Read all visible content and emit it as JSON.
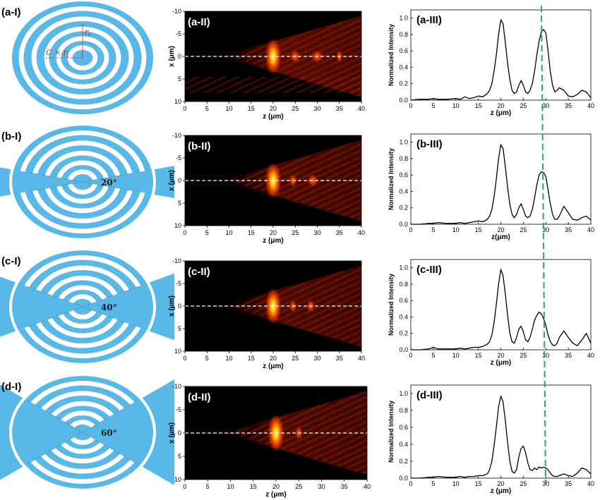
{
  "rows": [
    {
      "disc": {
        "label": "(a-I)",
        "angle": "",
        "annot_r": "r",
        "annot_r_sub": "t",
        "annot_c": "C × r",
        "annot_c_sub": "t"
      },
      "map": {
        "label": "(a-II)",
        "xlabel": "z (μm)",
        "ylabel": "x (μm)"
      },
      "line": {
        "label": "(a-III)",
        "xlabel": "z (μm)",
        "ylabel": "Normalized Intensity"
      }
    },
    {
      "disc": {
        "label": "(b-I)",
        "angle": "20°"
      },
      "map": {
        "label": "(b-II)",
        "xlabel": "z (μm)",
        "ylabel": "x (μm)"
      },
      "line": {
        "label": "(b-III)",
        "xlabel": "z(μm)",
        "ylabel": "Normalized Intensity"
      }
    },
    {
      "disc": {
        "label": "(c-I)",
        "angle": "40°"
      },
      "map": {
        "label": "(c-II)",
        "xlabel": "z (μm)",
        "ylabel": "x (μm)"
      },
      "line": {
        "label": "(c-III)",
        "xlabel": "z (μm)",
        "ylabel": "Normalized Intensity"
      }
    },
    {
      "disc": {
        "label": "(d-I)",
        "angle": "60°"
      },
      "map": {
        "label": "(d-II)",
        "xlabel": "z (μm)",
        "ylabel": "x (μm)"
      },
      "line": {
        "label": "(d-III)",
        "xlabel": "z (μm)",
        "ylabel": "Normalized Intensity"
      }
    }
  ],
  "colors": {
    "disc": "#58b9e8",
    "ring_gap": "#ffffff",
    "curve": "#000000",
    "reference_line": "#2ca85a",
    "centerline": "#ffffff"
  },
  "chart_data": [
    {
      "type": "heatmap",
      "title": "(a-II)",
      "xlabel": "z (μm)",
      "ylabel": "x (μm)",
      "xlim": [
        0,
        40
      ],
      "ylim": [
        10,
        -10
      ],
      "xticks": [
        0,
        5,
        10,
        15,
        20,
        25,
        30,
        35,
        40
      ],
      "yticks": [
        -10,
        -5,
        0,
        5,
        10
      ],
      "colormap": "hot",
      "features": [
        {
          "z": 20,
          "x": 0,
          "intensity": 1.0
        },
        {
          "z": 25,
          "x": 0,
          "intensity": 0.5
        },
        {
          "z": 30,
          "x": 0,
          "intensity": 0.55
        },
        {
          "z": 35,
          "x": 0,
          "intensity": 0.3
        }
      ]
    },
    {
      "type": "heatmap",
      "title": "(b-II)",
      "xlabel": "z (μm)",
      "ylabel": "x (μm)",
      "xlim": [
        0,
        40
      ],
      "ylim": [
        10,
        -10
      ],
      "xticks": [
        0,
        5,
        10,
        15,
        20,
        25,
        30,
        35,
        40
      ],
      "yticks": [
        -10,
        -5,
        0,
        5,
        10
      ],
      "colormap": "hot",
      "features": [
        {
          "z": 20,
          "x": 0,
          "intensity": 1.0
        },
        {
          "z": 24.5,
          "x": 0,
          "intensity": 0.4
        },
        {
          "z": 29,
          "x": 0,
          "intensity": 0.5
        }
      ]
    },
    {
      "type": "heatmap",
      "title": "(c-II)",
      "xlabel": "z (μm)",
      "ylabel": "x (μm)",
      "xlim": [
        0,
        40
      ],
      "ylim": [
        10,
        -10
      ],
      "xticks": [
        0,
        5,
        10,
        15,
        20,
        25,
        30,
        35,
        40
      ],
      "yticks": [
        -10,
        -5,
        0,
        5,
        10
      ],
      "colormap": "hot",
      "features": [
        {
          "z": 20,
          "x": 0,
          "intensity": 1.0
        },
        {
          "z": 24.5,
          "x": 0,
          "intensity": 0.35
        },
        {
          "z": 28.5,
          "x": 0,
          "intensity": 0.4
        }
      ]
    },
    {
      "type": "heatmap",
      "title": "(d-II)",
      "xlabel": "z (μm)",
      "ylabel": "x (μm)",
      "xlim": [
        0,
        40
      ],
      "ylim": [
        10,
        -10
      ],
      "xticks": [
        0,
        5,
        10,
        15,
        20,
        25,
        30,
        35,
        40
      ],
      "yticks": [
        -10,
        -5,
        0,
        5,
        10
      ],
      "colormap": "hot",
      "features": [
        {
          "z": 20,
          "x": 0,
          "intensity": 1.0
        },
        {
          "z": 25,
          "x": 0,
          "intensity": 0.35
        }
      ]
    },
    {
      "type": "line",
      "title": "(a-III)",
      "xlabel": "z (μm)",
      "ylabel": "Normalized Intensity",
      "xlim": [
        0,
        40
      ],
      "ylim": [
        0,
        1.1
      ],
      "xticks": [
        0,
        5,
        10,
        15,
        20,
        25,
        30,
        35,
        40
      ],
      "yticks": [
        0.0,
        0.2,
        0.4,
        0.6,
        0.8,
        1.0
      ],
      "reference_z": 30,
      "x": [
        0,
        2,
        4,
        5,
        6,
        8,
        10,
        11,
        12,
        13,
        14,
        15,
        16,
        17,
        17.5,
        18,
        18.5,
        19,
        19.5,
        20,
        20.5,
        21,
        21.5,
        22,
        22.5,
        23,
        23.5,
        24,
        24.5,
        25,
        25.5,
        26,
        26.5,
        27,
        27.5,
        28,
        28.5,
        29,
        29.5,
        30,
        30.5,
        31,
        31.5,
        32,
        32.5,
        33,
        34,
        35,
        36,
        37,
        38,
        39,
        40
      ],
      "y": [
        0.0,
        0.01,
        0.01,
        0.02,
        0.01,
        0.01,
        0.02,
        0.01,
        0.04,
        0.02,
        0.03,
        0.05,
        0.04,
        0.08,
        0.12,
        0.2,
        0.35,
        0.55,
        0.8,
        0.98,
        0.93,
        0.7,
        0.45,
        0.25,
        0.12,
        0.08,
        0.1,
        0.18,
        0.24,
        0.18,
        0.1,
        0.08,
        0.12,
        0.2,
        0.35,
        0.55,
        0.72,
        0.83,
        0.86,
        0.82,
        0.6,
        0.35,
        0.18,
        0.1,
        0.12,
        0.15,
        0.12,
        0.05,
        0.04,
        0.07,
        0.12,
        0.1,
        0.03
      ]
    },
    {
      "type": "line",
      "title": "(b-III)",
      "xlabel": "z(μm)",
      "ylabel": "Normalized Intensity",
      "xlim": [
        0,
        40
      ],
      "ylim": [
        0,
        1.1
      ],
      "xticks": [
        0,
        5,
        10,
        15,
        20,
        25,
        30,
        35,
        40
      ],
      "yticks": [
        0.0,
        0.2,
        0.4,
        0.6,
        0.8,
        1.0
      ],
      "reference_z": 30,
      "x": [
        0,
        2,
        4,
        5,
        6,
        8,
        10,
        11,
        12,
        13,
        14,
        15,
        16,
        17,
        17.5,
        18,
        18.5,
        19,
        19.5,
        20,
        20.5,
        21,
        21.5,
        22,
        22.5,
        23,
        23.5,
        24,
        24.5,
        25,
        25.5,
        26,
        26.5,
        27,
        27.5,
        28,
        28.5,
        29,
        29.5,
        30,
        30.5,
        31,
        31.5,
        32,
        32.5,
        33,
        34,
        35,
        36,
        37,
        38,
        39,
        40
      ],
      "y": [
        0.0,
        0.0,
        0.01,
        0.01,
        0.02,
        0.01,
        0.01,
        0.02,
        0.01,
        0.02,
        0.03,
        0.04,
        0.03,
        0.06,
        0.1,
        0.18,
        0.33,
        0.55,
        0.8,
        0.97,
        0.92,
        0.7,
        0.45,
        0.24,
        0.12,
        0.08,
        0.12,
        0.2,
        0.25,
        0.18,
        0.1,
        0.08,
        0.1,
        0.18,
        0.32,
        0.48,
        0.6,
        0.64,
        0.63,
        0.58,
        0.42,
        0.25,
        0.12,
        0.06,
        0.06,
        0.1,
        0.22,
        0.14,
        0.06,
        0.05,
        0.08,
        0.1,
        0.05
      ]
    },
    {
      "type": "line",
      "title": "(c-III)",
      "xlabel": "z (μm)",
      "ylabel": "Normalized Intensity",
      "xlim": [
        0,
        40
      ],
      "ylim": [
        0,
        1.1
      ],
      "xticks": [
        0,
        5,
        10,
        15,
        20,
        25,
        30,
        35,
        40
      ],
      "yticks": [
        0.0,
        0.2,
        0.4,
        0.6,
        0.8,
        1.0
      ],
      "reference_z": 30,
      "x": [
        0,
        2,
        4,
        5,
        6,
        8,
        10,
        11,
        12,
        13,
        14,
        15,
        16,
        17,
        17.5,
        18,
        18.5,
        19,
        19.5,
        20,
        20.5,
        21,
        21.5,
        22,
        22.5,
        23,
        23.5,
        24,
        24.5,
        25,
        25.5,
        26,
        26.5,
        27,
        27.5,
        28,
        28.5,
        29,
        29.5,
        30,
        30.5,
        31,
        31.5,
        32,
        32.5,
        33,
        34,
        35,
        36,
        37,
        38,
        39,
        40
      ],
      "y": [
        0.0,
        0.0,
        0.01,
        0.03,
        0.01,
        0.01,
        0.01,
        0.02,
        0.01,
        0.02,
        0.03,
        0.03,
        0.04,
        0.07,
        0.1,
        0.18,
        0.33,
        0.55,
        0.8,
        0.98,
        0.9,
        0.68,
        0.42,
        0.2,
        0.1,
        0.08,
        0.15,
        0.25,
        0.29,
        0.22,
        0.12,
        0.1,
        0.15,
        0.25,
        0.36,
        0.42,
        0.46,
        0.44,
        0.38,
        0.3,
        0.18,
        0.1,
        0.06,
        0.05,
        0.08,
        0.15,
        0.23,
        0.15,
        0.08,
        0.05,
        0.12,
        0.2,
        0.08
      ]
    },
    {
      "type": "line",
      "title": "(d-III)",
      "xlabel": "z (μm)",
      "ylabel": "Normalized Intensity",
      "xlim": [
        0,
        40
      ],
      "ylim": [
        0,
        1.1
      ],
      "xticks": [
        0,
        5,
        10,
        15,
        20,
        25,
        30,
        35,
        40
      ],
      "yticks": [
        0.0,
        0.2,
        0.4,
        0.6,
        0.8,
        1.0
      ],
      "reference_z": 30,
      "x": [
        0,
        2,
        4,
        5,
        6,
        8,
        10,
        11,
        12,
        13,
        14,
        15,
        16,
        17,
        17.5,
        18,
        18.5,
        19,
        19.5,
        20,
        20.5,
        21,
        21.5,
        22,
        22.5,
        23,
        23.5,
        24,
        24.5,
        25,
        25.5,
        26,
        26.5,
        27,
        27.5,
        28,
        28.5,
        29,
        29.5,
        30,
        30.5,
        31,
        31.5,
        32,
        32.5,
        33,
        34,
        35,
        36,
        37,
        38,
        39,
        40
      ],
      "y": [
        0.0,
        0.0,
        0.01,
        0.01,
        0.02,
        0.01,
        0.01,
        0.02,
        0.01,
        0.02,
        0.02,
        0.03,
        0.03,
        0.05,
        0.1,
        0.2,
        0.38,
        0.6,
        0.84,
        0.97,
        0.9,
        0.68,
        0.42,
        0.2,
        0.08,
        0.06,
        0.1,
        0.25,
        0.35,
        0.38,
        0.3,
        0.18,
        0.1,
        0.09,
        0.12,
        0.1,
        0.13,
        0.12,
        0.13,
        0.12,
        0.1,
        0.06,
        0.03,
        0.02,
        0.02,
        0.03,
        0.05,
        0.03,
        0.02,
        0.06,
        0.12,
        0.1,
        0.05
      ]
    }
  ]
}
